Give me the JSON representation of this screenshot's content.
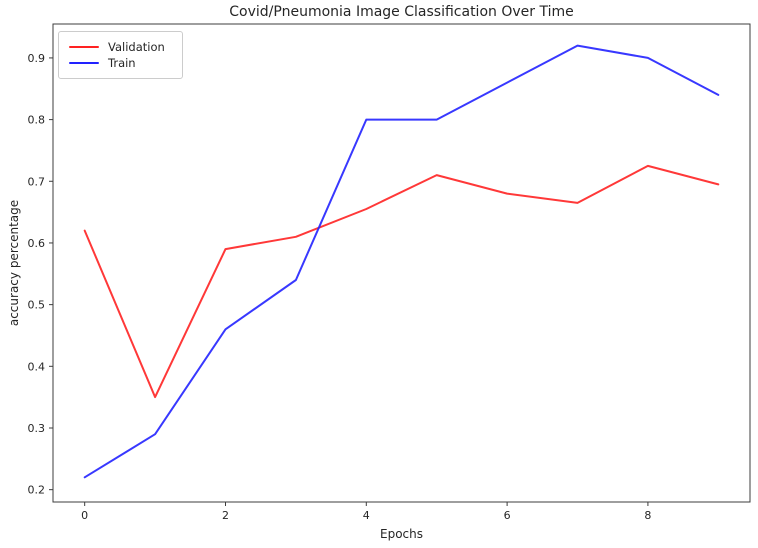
{
  "figure": {
    "title": "Covid/Pneumonia Image Classification Over Time",
    "xlabel": "Epochs",
    "ylabel": "accuracy percentage"
  },
  "legend": {
    "items": [
      {
        "label": "Validation",
        "color": "#ff2222"
      },
      {
        "label": "Train",
        "color": "#2222ff"
      }
    ]
  },
  "colors": {
    "spine": "#3c3c3c",
    "tick_label": "#262626",
    "background": "#ffffff"
  },
  "chart_data": {
    "type": "line",
    "title": "Covid/Pneumonia Image Classification Over Time",
    "xlabel": "Epochs",
    "ylabel": "accuracy percentage",
    "x": [
      0,
      1,
      2,
      3,
      4,
      5,
      6,
      7,
      8,
      9
    ],
    "series": [
      {
        "name": "Validation",
        "color": "#ff2222",
        "values": [
          0.62,
          0.35,
          0.59,
          0.61,
          0.655,
          0.71,
          0.68,
          0.665,
          0.725,
          0.695
        ]
      },
      {
        "name": "Train",
        "color": "#2222ff",
        "values": [
          0.22,
          0.29,
          0.46,
          0.54,
          0.8,
          0.8,
          0.86,
          0.92,
          0.9,
          0.84
        ]
      }
    ],
    "xlim": [
      -0.45,
      9.45
    ],
    "ylim": [
      0.18,
      0.955
    ],
    "x_ticks": [
      0,
      2,
      4,
      6,
      8
    ],
    "y_ticks": [
      0.2,
      0.3,
      0.4,
      0.5,
      0.6,
      0.7,
      0.8,
      0.9
    ],
    "grid": false,
    "legend_position": "upper-left"
  }
}
